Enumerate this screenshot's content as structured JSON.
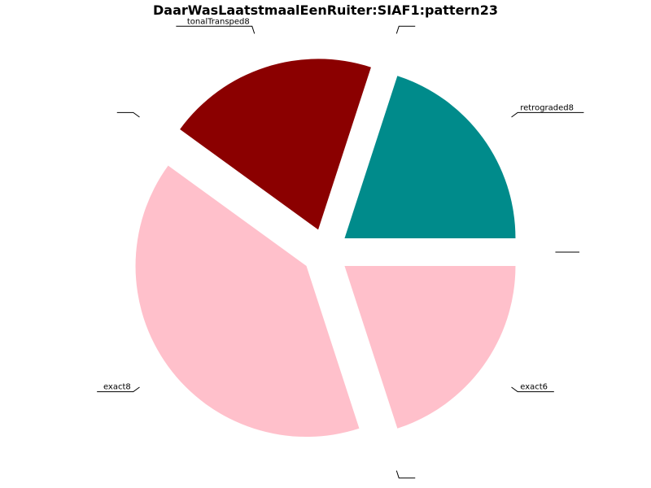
{
  "chart_data": {
    "type": "pie",
    "title": "DaarWasLaatstmaalEenRuiter:SIAF1:pattern23",
    "slices": [
      {
        "label": "exact6",
        "value": 1,
        "color": "#ffc0cb"
      },
      {
        "label": "",
        "value": 0,
        "color": "#ffc0cb"
      },
      {
        "label": "exact8",
        "value": 2,
        "color": "#ffc0cb"
      },
      {
        "label": "",
        "value": 0,
        "color": "#8b0000"
      },
      {
        "label": "tonalTransped8",
        "value": 1,
        "color": "#8b0000"
      },
      {
        "label": "",
        "value": 0,
        "color": "#008b8b"
      },
      {
        "label": "retrograded8",
        "value": 1,
        "color": "#008b8b"
      },
      {
        "label": "",
        "value": 0,
        "color": "#ffc0cb"
      }
    ],
    "start_angle_deg": 0,
    "direction": "clockwise",
    "exploded": true,
    "legend": "none",
    "grid": false
  }
}
